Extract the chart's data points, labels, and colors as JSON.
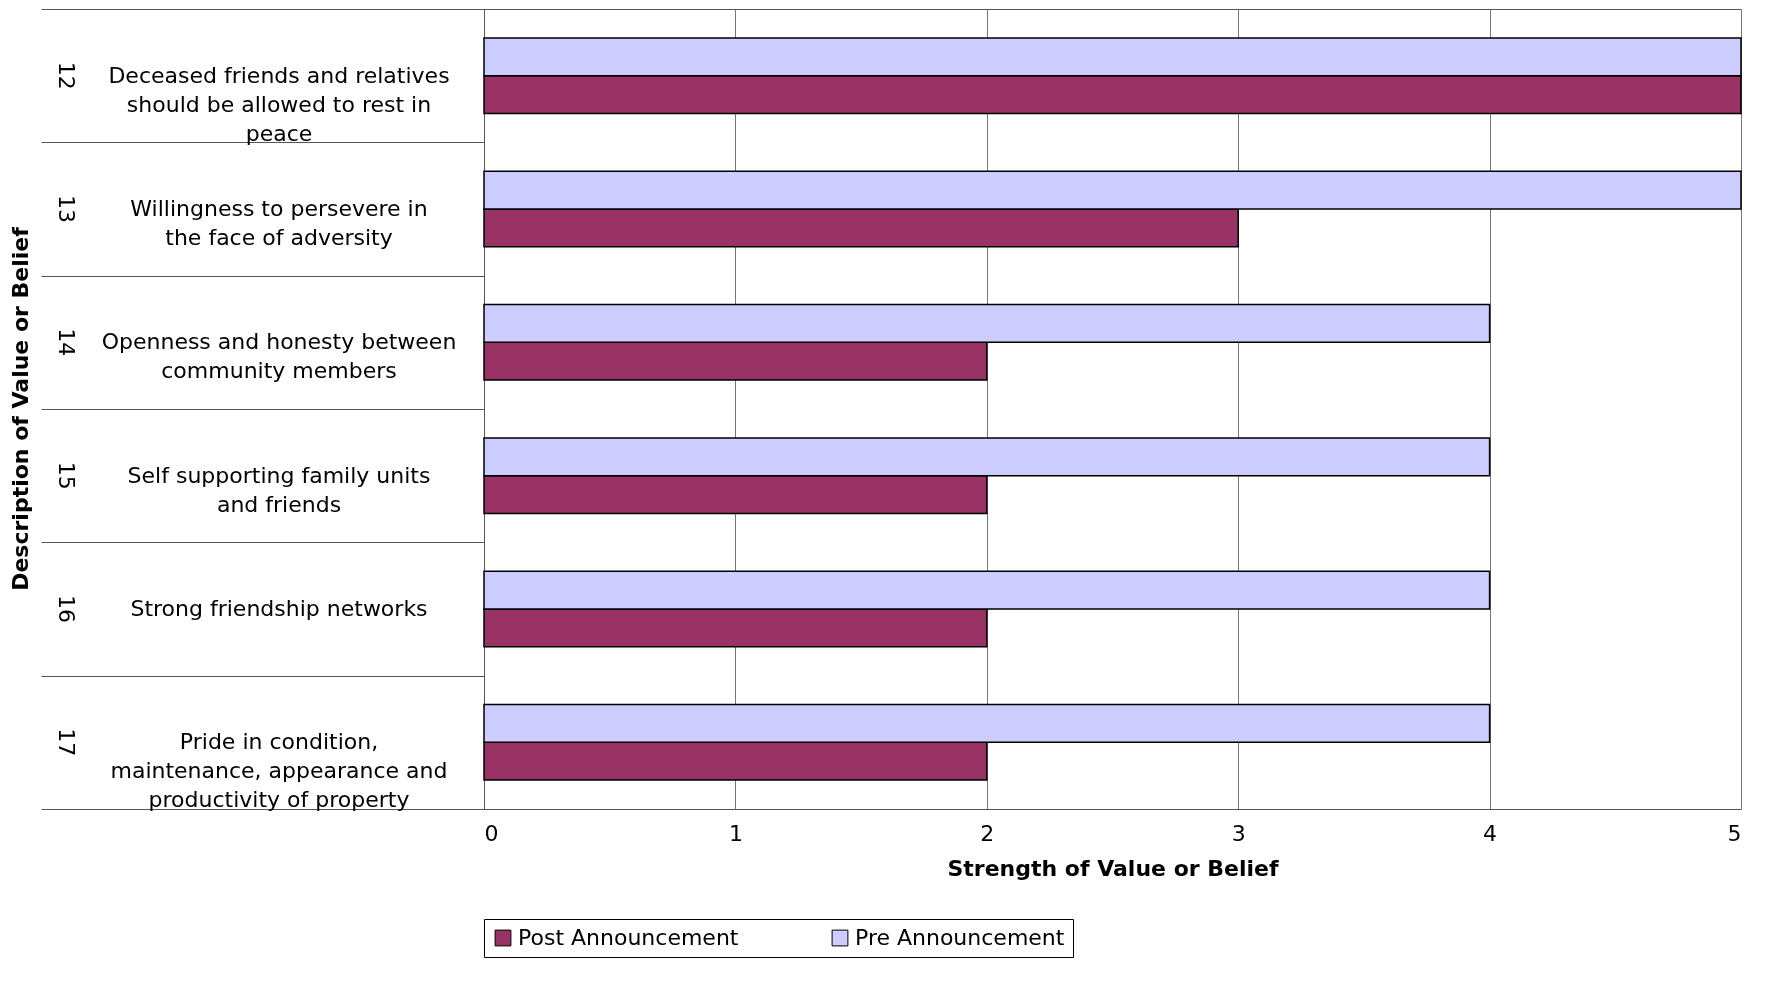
{
  "chart_data": {
    "type": "bar",
    "orientation": "horizontal",
    "xlabel": "Strength of Value or Belief",
    "ylabel": "Description of Value or Belief",
    "categories": [
      "Deceased friends and relatives should be allowed to rest in peace",
      "Willingness to persevere in the face of  adversity",
      "Openness and honesty between community members",
      "Self supporting family units and friends",
      "Strong friendship networks",
      "Pride in condition, maintenance, appearance and productivity of property"
    ],
    "series": [
      {
        "name": "Post Announcement",
        "color": "#993366",
        "values": [
          5,
          3,
          2,
          2,
          2,
          2
        ]
      },
      {
        "name": "Pre Announcement",
        "color": "#ccccff",
        "values": [
          5,
          5,
          4,
          4,
          4,
          4
        ]
      }
    ],
    "annotations": [
      "12",
      "13",
      "14",
      "15",
      "16",
      "17"
    ],
    "xlim": [
      0,
      5
    ],
    "xticks": [
      0,
      1,
      2,
      3,
      4,
      5
    ],
    "grid": "x",
    "legend": "bottom"
  }
}
